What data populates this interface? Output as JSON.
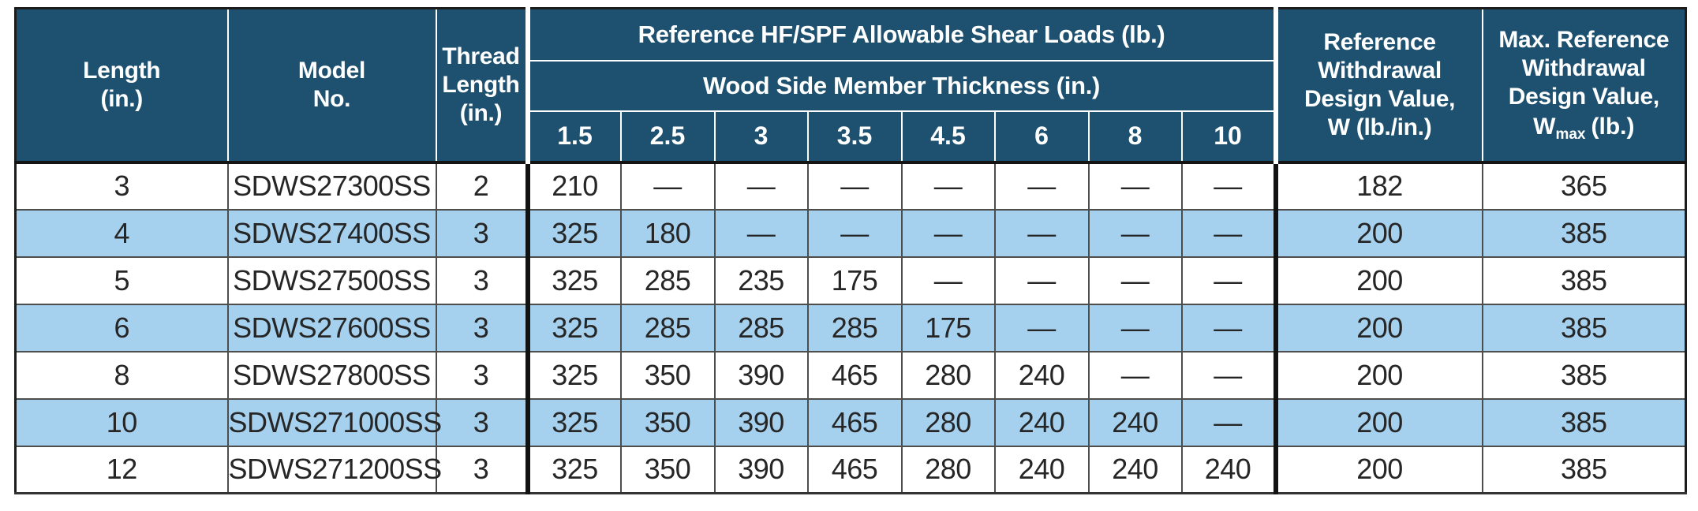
{
  "colors": {
    "header_bg": "#1e5170",
    "row_alt_bg": "#a5d1ef",
    "grid_line": "#4d4d4d",
    "thick_divider": "#121212",
    "header_text": "#ffffff",
    "body_text": "#262626"
  },
  "table": {
    "header": {
      "length": "Length\n(in.)",
      "model": "Model\nNo.",
      "thread": "Thread\nLength\n(in.)",
      "shear_group": "Reference HF/SPF Allowable Shear Loads (lb.)",
      "thickness_group": "Wood Side Member Thickness (in.)",
      "thickness_values": [
        "1.5",
        "2.5",
        "3",
        "3.5",
        "4.5",
        "6",
        "8",
        "10"
      ],
      "ref_withdrawal": "Reference\nWithdrawal\nDesign Value,\nW (lb./in.)",
      "max_ref": {
        "lines": "Max. Reference\nWithdrawal\nDesign Value,",
        "w": "W",
        "sub": "max",
        "unit": "(lb.)"
      }
    },
    "rows": [
      {
        "length": "3",
        "model": "SDWS27300SS",
        "thread": "2",
        "shear": [
          "210",
          "—",
          "—",
          "—",
          "—",
          "—",
          "—",
          "—"
        ],
        "w": "182",
        "wmax": "365",
        "shaded": false
      },
      {
        "length": "4",
        "model": "SDWS27400SS",
        "thread": "3",
        "shear": [
          "325",
          "180",
          "—",
          "—",
          "—",
          "—",
          "—",
          "—"
        ],
        "w": "200",
        "wmax": "385",
        "shaded": true
      },
      {
        "length": "5",
        "model": "SDWS27500SS",
        "thread": "3",
        "shear": [
          "325",
          "285",
          "235",
          "175",
          "—",
          "—",
          "—",
          "—"
        ],
        "w": "200",
        "wmax": "385",
        "shaded": false
      },
      {
        "length": "6",
        "model": "SDWS27600SS",
        "thread": "3",
        "shear": [
          "325",
          "285",
          "285",
          "285",
          "175",
          "—",
          "—",
          "—"
        ],
        "w": "200",
        "wmax": "385",
        "shaded": true
      },
      {
        "length": "8",
        "model": "SDWS27800SS",
        "thread": "3",
        "shear": [
          "325",
          "350",
          "390",
          "465",
          "280",
          "240",
          "—",
          "—"
        ],
        "w": "200",
        "wmax": "385",
        "shaded": false
      },
      {
        "length": "10",
        "model": "SDWS271000SS",
        "thread": "3",
        "shear": [
          "325",
          "350",
          "390",
          "465",
          "280",
          "240",
          "240",
          "—"
        ],
        "w": "200",
        "wmax": "385",
        "shaded": true
      },
      {
        "length": "12",
        "model": "SDWS271200SS",
        "thread": "3",
        "shear": [
          "325",
          "350",
          "390",
          "465",
          "280",
          "240",
          "240",
          "240"
        ],
        "w": "200",
        "wmax": "385",
        "shaded": false
      }
    ]
  }
}
